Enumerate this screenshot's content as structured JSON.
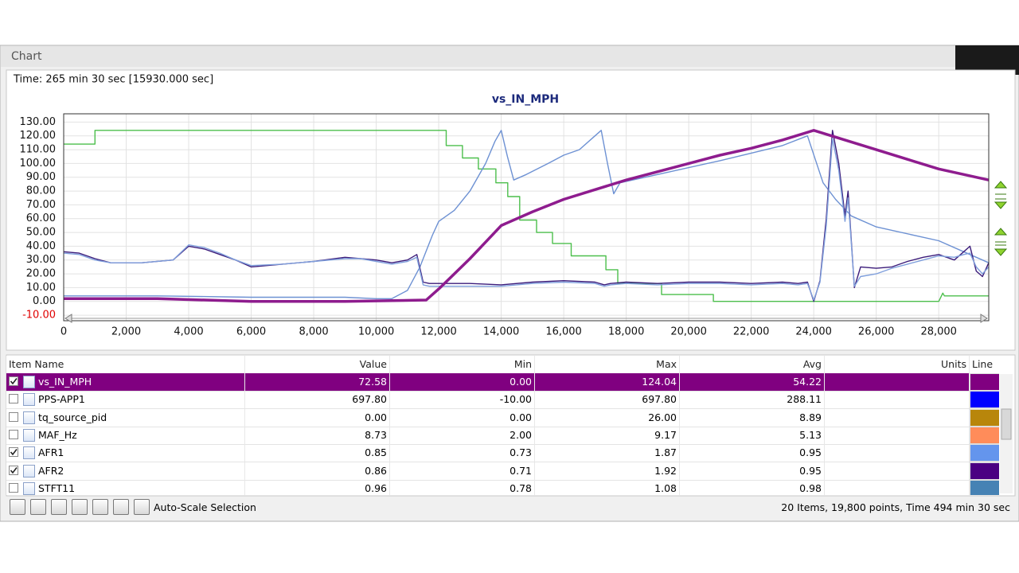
{
  "panel_title": "Chart",
  "time_label": "Time: 265 min 30 sec [15930.000 sec]",
  "chart_data": {
    "type": "line",
    "title": "vs_IN_MPH",
    "xlim": [
      0,
      29600
    ],
    "ylim": [
      -14,
      136
    ],
    "grid": true,
    "xticks": [
      0,
      {
        "value": 2000,
        "label": "2,000"
      },
      {
        "value": 4000,
        "label": "4,000"
      },
      {
        "value": 6000,
        "label": "6,000"
      },
      {
        "value": 8000,
        "label": "8,000"
      },
      {
        "value": 10000,
        "label": "10,000"
      },
      {
        "value": 12000,
        "label": "12,000"
      },
      {
        "value": 14000,
        "label": "14,000"
      },
      {
        "value": 16000,
        "label": "16,000"
      },
      {
        "value": 18000,
        "label": "18,000"
      },
      {
        "value": 20000,
        "label": "20,000"
      },
      {
        "value": 22000,
        "label": "22,000"
      },
      {
        "value": 24000,
        "label": "24,000"
      },
      {
        "value": 26000,
        "label": "26,000"
      },
      {
        "value": 28000,
        "label": "28,000"
      }
    ],
    "yticks": [
      {
        "value": 130,
        "label": "130.00"
      },
      {
        "value": 120,
        "label": "120.00"
      },
      {
        "value": 110,
        "label": "110.00"
      },
      {
        "value": 100,
        "label": "100.00"
      },
      {
        "value": 90,
        "label": "90.00"
      },
      {
        "value": 80,
        "label": "80.00"
      },
      {
        "value": 70,
        "label": "70.00"
      },
      {
        "value": 60,
        "label": "60.00"
      },
      {
        "value": 50,
        "label": "50.00"
      },
      {
        "value": 40,
        "label": "40.00"
      },
      {
        "value": 30,
        "label": "30.00"
      },
      {
        "value": 20,
        "label": "20.00"
      },
      {
        "value": 10,
        "label": "10.00"
      },
      {
        "value": 0,
        "label": "0.00"
      },
      {
        "value": -10,
        "label": "-10.00"
      }
    ],
    "series": [
      {
        "name": "vs_IN_MPH",
        "color": "#8e1c8e",
        "x": [
          0,
          3000,
          6000,
          9000,
          11600,
          12000,
          12500,
          13000,
          13500,
          14000,
          15000,
          16000,
          17000,
          18000,
          19000,
          20000,
          21000,
          22000,
          23000,
          24000,
          25000,
          26000,
          27000,
          28000,
          29600
        ],
        "values": [
          2,
          2,
          0,
          0,
          1,
          9,
          20,
          31,
          43,
          55,
          65,
          74,
          81,
          88,
          94,
          100,
          106,
          111,
          117,
          124,
          117,
          110,
          103,
          96,
          88
        ]
      },
      {
        "name": "AFR1",
        "color": "#7f9fdc",
        "x": [
          0,
          500,
          1000,
          1500,
          2500,
          3500,
          4000,
          4500,
          5000,
          5500,
          6000,
          7000,
          8000,
          9000,
          9500,
          10000,
          10500,
          11000,
          11300,
          11500,
          11700,
          12000,
          13000,
          14000,
          15000,
          16000,
          17000,
          17300,
          17500,
          18000,
          19000,
          20000,
          21000,
          22000,
          23000,
          23500,
          23800,
          24000,
          24200,
          24400,
          24600,
          24800,
          25000,
          25100,
          25300,
          25500,
          26000,
          26500,
          27000,
          27500,
          28000,
          28500,
          28800,
          29000,
          29200,
          29400,
          29600
        ],
        "values": [
          35,
          34,
          30,
          28,
          28,
          30,
          41,
          39,
          35,
          30,
          26,
          27,
          29,
          31,
          31,
          29,
          27,
          29,
          32,
          12,
          11,
          11,
          11,
          11,
          13,
          14,
          13,
          11,
          12,
          13,
          12,
          13,
          13,
          12,
          13,
          12,
          13,
          1,
          14,
          55,
          118,
          95,
          58,
          75,
          11,
          18,
          20,
          24,
          27,
          30,
          33,
          32,
          34,
          35,
          25,
          20,
          25
        ]
      },
      {
        "name": "AFR2",
        "color": "#3b1b7a",
        "x": [
          0,
          500,
          1000,
          1500,
          2500,
          3500,
          4000,
          4500,
          5000,
          5500,
          6000,
          7000,
          8000,
          9000,
          9500,
          10000,
          10500,
          11000,
          11300,
          11500,
          11700,
          12000,
          13000,
          14000,
          15000,
          16000,
          17000,
          17300,
          17500,
          18000,
          19000,
          20000,
          21000,
          22000,
          23000,
          23500,
          23800,
          24000,
          24200,
          24400,
          24600,
          24800,
          25000,
          25100,
          25300,
          25500,
          26000,
          26500,
          27000,
          27500,
          28000,
          28500,
          28800,
          29000,
          29200,
          29400,
          29600
        ],
        "values": [
          36,
          35,
          31,
          28,
          28,
          30,
          40,
          38,
          34,
          30,
          25,
          27,
          29,
          32,
          31,
          30,
          28,
          30,
          34,
          14,
          13,
          13,
          13,
          12,
          14,
          15,
          14,
          12,
          13,
          14,
          13,
          14,
          14,
          13,
          14,
          13,
          14,
          0,
          15,
          60,
          124,
          100,
          62,
          80,
          10,
          25,
          24,
          25,
          29,
          32,
          34,
          30,
          36,
          40,
          22,
          18,
          28
        ]
      },
      {
        "color": "#6d91d3",
        "x": [
          0,
          3000,
          6000,
          9000,
          10000,
          10500,
          11000,
          11400,
          11800,
          12000,
          12500,
          13000,
          13500,
          13800,
          14000,
          14200,
          14400,
          14800,
          15500,
          16000,
          16500,
          17000,
          17200,
          17400,
          17600,
          17800,
          19000,
          21000,
          23000,
          23800,
          24300,
          24700,
          25200,
          26000,
          28000,
          29000,
          29600
        ],
        "values": [
          4,
          4,
          3,
          3,
          2,
          2,
          8,
          25,
          48,
          58,
          66,
          80,
          100,
          116,
          124,
          105,
          88,
          92,
          100,
          106,
          110,
          120,
          124,
          100,
          78,
          86,
          92,
          102,
          113,
          120,
          86,
          74,
          62,
          54,
          44,
          34,
          28
        ]
      },
      {
        "color": "#4cbf4c",
        "x": [
          0,
          1000,
          1000,
          12240,
          12240,
          12760,
          12760,
          13270,
          13270,
          13830,
          13830,
          14210,
          14210,
          14590,
          14590,
          15130,
          15130,
          15640,
          15640,
          16240,
          16240,
          17350,
          17350,
          17730,
          17730,
          19130,
          19130,
          20790,
          20790,
          28000,
          28130,
          28180,
          29600
        ],
        "values": [
          114,
          114,
          124,
          124,
          113,
          113,
          104,
          104,
          96,
          96,
          86,
          86,
          76,
          76,
          59,
          59,
          50,
          50,
          42,
          42,
          33,
          33,
          23,
          23,
          13,
          13,
          5,
          5,
          0,
          0,
          6,
          4,
          4
        ]
      }
    ]
  },
  "table": {
    "columns": [
      "Item Name",
      "Value",
      "Min",
      "Max",
      "Avg",
      "Units",
      "Line"
    ],
    "rows": [
      {
        "name": "vs_IN_MPH",
        "value": "72.58",
        "min": "0.00",
        "max": "124.04",
        "avg": "54.22",
        "color": "#800080",
        "checked": true
      },
      {
        "name": "PPS-APP1",
        "value": "697.80",
        "min": "-10.00",
        "max": "697.80",
        "avg": "288.11",
        "color": "#0000ff",
        "checked": false
      },
      {
        "name": "tq_source_pid",
        "value": "0.00",
        "min": "0.00",
        "max": "26.00",
        "avg": "8.89",
        "color": "#b8860b",
        "checked": false
      },
      {
        "name": "MAF_Hz",
        "value": "8.73",
        "min": "2.00",
        "max": "9.17",
        "avg": "5.13",
        "color": "#ff8c5a",
        "checked": false
      },
      {
        "name": "AFR1",
        "value": "0.85",
        "min": "0.73",
        "max": "1.87",
        "avg": "0.95",
        "color": "#6495ed",
        "checked": true
      },
      {
        "name": "AFR2",
        "value": "0.86",
        "min": "0.71",
        "max": "1.92",
        "avg": "0.95",
        "color": "#4b0082",
        "checked": true
      },
      {
        "name": "STFT11",
        "value": "0.96",
        "min": "0.78",
        "max": "1.08",
        "avg": "0.98",
        "color": "#4682b4",
        "checked": false
      }
    ]
  },
  "toolbar_label": "Auto-Scale Selection",
  "status": "20 Items, 19,800 points, Time 494 min 30 sec"
}
